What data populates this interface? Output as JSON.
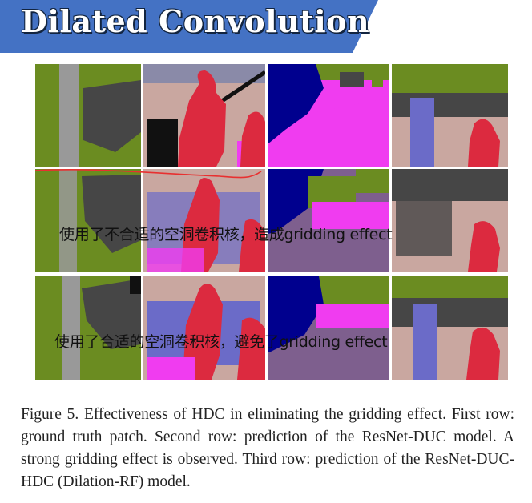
{
  "slide": {
    "title": "Dilated Convolution",
    "accent_color": "#4472c4"
  },
  "figure": {
    "rows": 3,
    "columns": 4,
    "annotations": {
      "row2": "使用了不合适的空洞卷积核，造成gridding effect",
      "row3": "使用了合适的空洞卷积核，避免了gridding effect"
    },
    "caption": "Figure 5. Effectiveness of HDC in eliminating the gridding effect. First row: ground truth patch. Second row: prediction of the ResNet-DUC model. A strong gridding effect is observed. Third row: prediction of the ResNet-DUC-HDC (Dilation-RF) model.",
    "palette": {
      "vegetation": "#6b8c21",
      "pole": "#999999",
      "building": "#464646",
      "person": "#dc2a3f",
      "sidewalk": "#f03cf0",
      "road": "#7e5f8e",
      "car": "#00008e",
      "ground": "#c9a7a0",
      "wall": "#6b6bc8",
      "sky": "#b6b6d2"
    }
  }
}
